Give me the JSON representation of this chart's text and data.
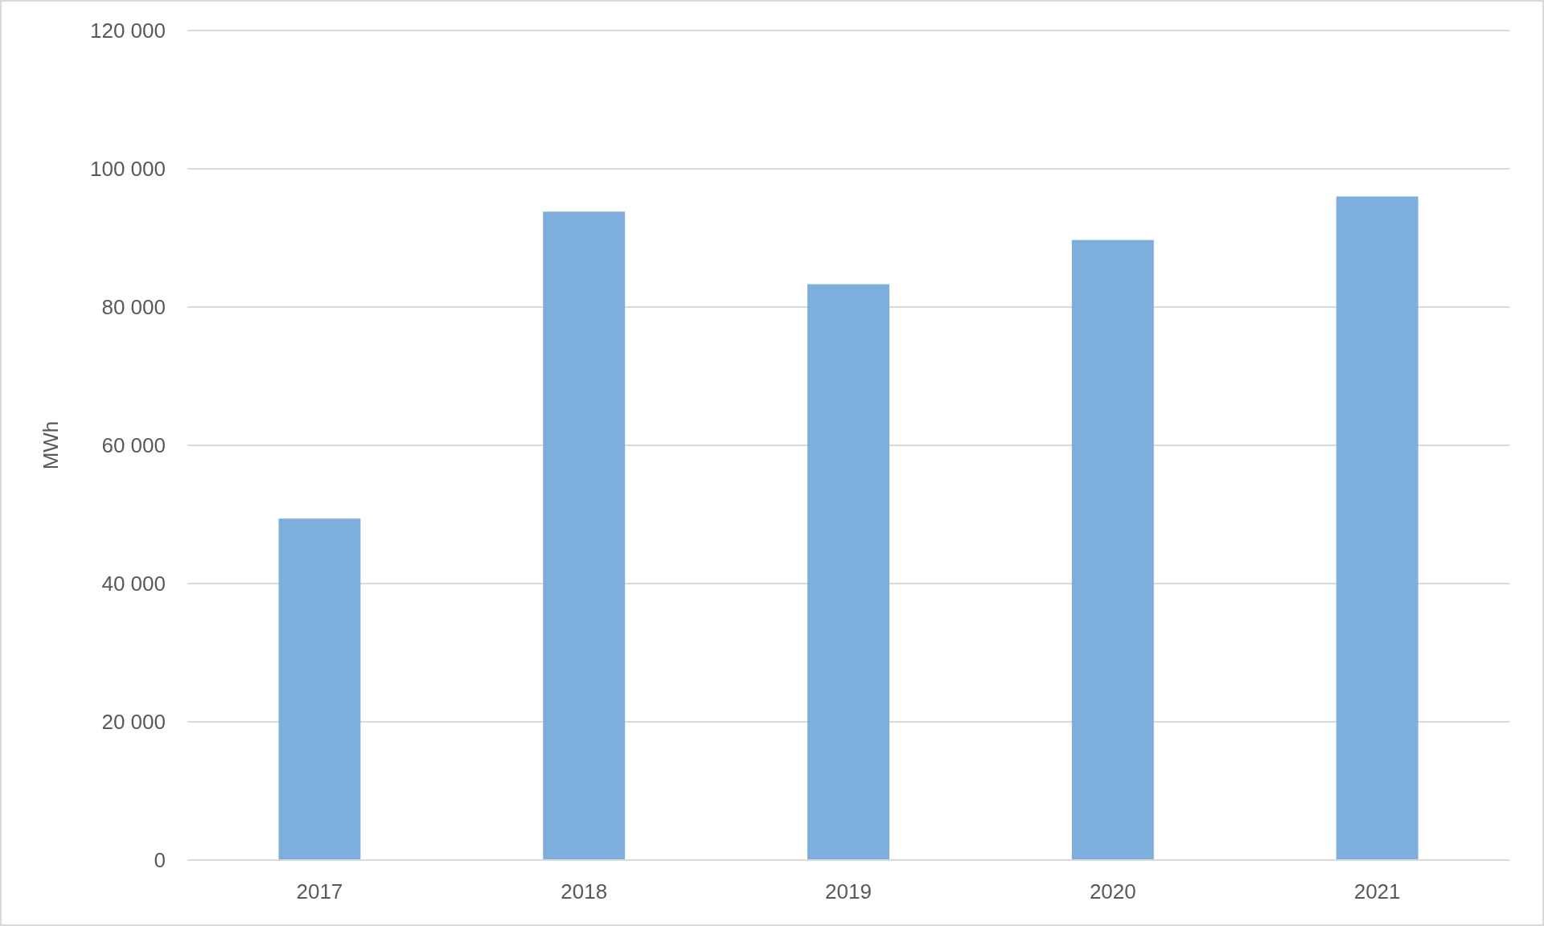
{
  "chart_data": {
    "type": "bar",
    "ylabel": "MWh",
    "categories": [
      "2017",
      "2018",
      "2019",
      "2020",
      "2021"
    ],
    "values": [
      49400,
      93800,
      83300,
      89700,
      96000
    ],
    "color": "#7daedc",
    "ylim": [
      0,
      120000
    ],
    "yticks": [
      {
        "value": 0,
        "label": "0"
      },
      {
        "value": 20000,
        "label": "20 000"
      },
      {
        "value": 40000,
        "label": "40 000"
      },
      {
        "value": 60000,
        "label": "60 000"
      },
      {
        "value": 80000,
        "label": "80 000"
      },
      {
        "value": 100000,
        "label": "100 000"
      },
      {
        "value": 120000,
        "label": "120 000"
      }
    ],
    "grid": "y"
  }
}
